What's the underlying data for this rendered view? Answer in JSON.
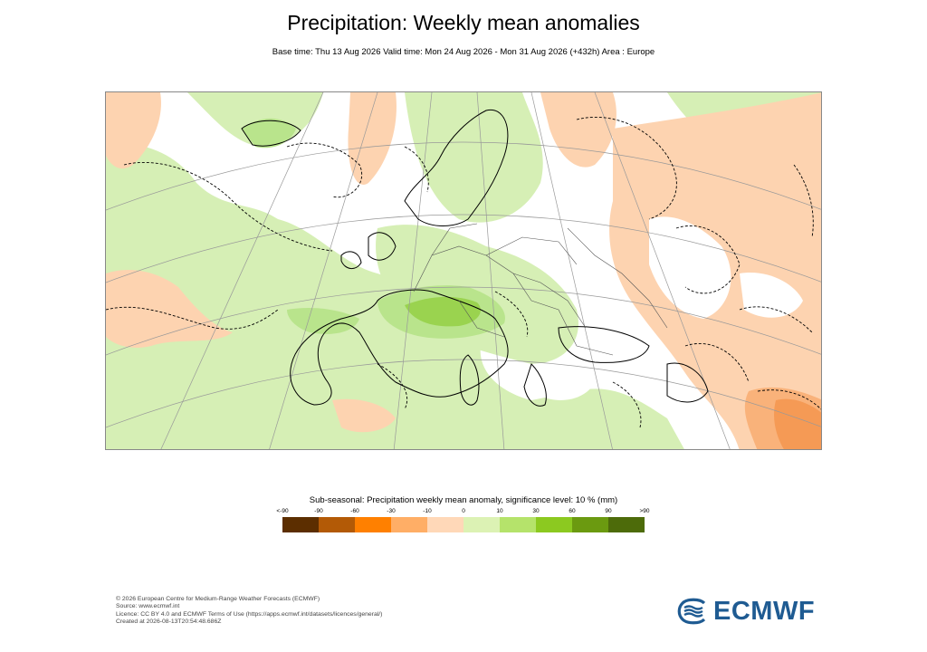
{
  "header": {
    "title": "Precipitation: Weekly mean anomalies",
    "subtitle": "Base time: Thu 13 Aug 2026 Valid time: Mon 24 Aug 2026 - Mon 31 Aug 2026 (+432h) Area : Europe"
  },
  "legend": {
    "title": "Sub-seasonal: Precipitation weekly mean anomaly, significance level: 10 % (mm)",
    "labels": [
      "<-90",
      "-90",
      "-60",
      "-30",
      "-10",
      "0",
      "10",
      "30",
      "60",
      "90",
      ">90"
    ],
    "colors": [
      "#5c2e00",
      "#b35a06",
      "#ff8000",
      "#ffae66",
      "#ffd8b8",
      "#ffffff",
      "#dcf2b4",
      "#b5e36b",
      "#8cc920",
      "#6b9a10",
      "#4d6b0a"
    ]
  },
  "map": {
    "colors": {
      "ocean_green": "#d6efb5",
      "mid_green": "#b9e48c",
      "strong_green": "#9ad34f",
      "light_orange": "#fdd3b0",
      "mid_orange": "#f9b27a",
      "strong_orange": "#f59a55",
      "white": "#ffffff",
      "coast": "#000000",
      "border": "#555555",
      "grid": "#999999"
    }
  },
  "footer": {
    "line1": "© 2026 European Centre for Medium-Range Weather Forecasts (ECMWF)",
    "line2": "Source: www.ecmwf.int",
    "line3": "Licence: CC BY 4.0 and ECMWF Terms of Use (https://apps.ecmwf.int/datasets/licences/general/)",
    "line4": "Created at 2026-08-13T20:54:48.686Z"
  },
  "logo": {
    "text": "ECMWF",
    "color": "#1f5b92"
  }
}
